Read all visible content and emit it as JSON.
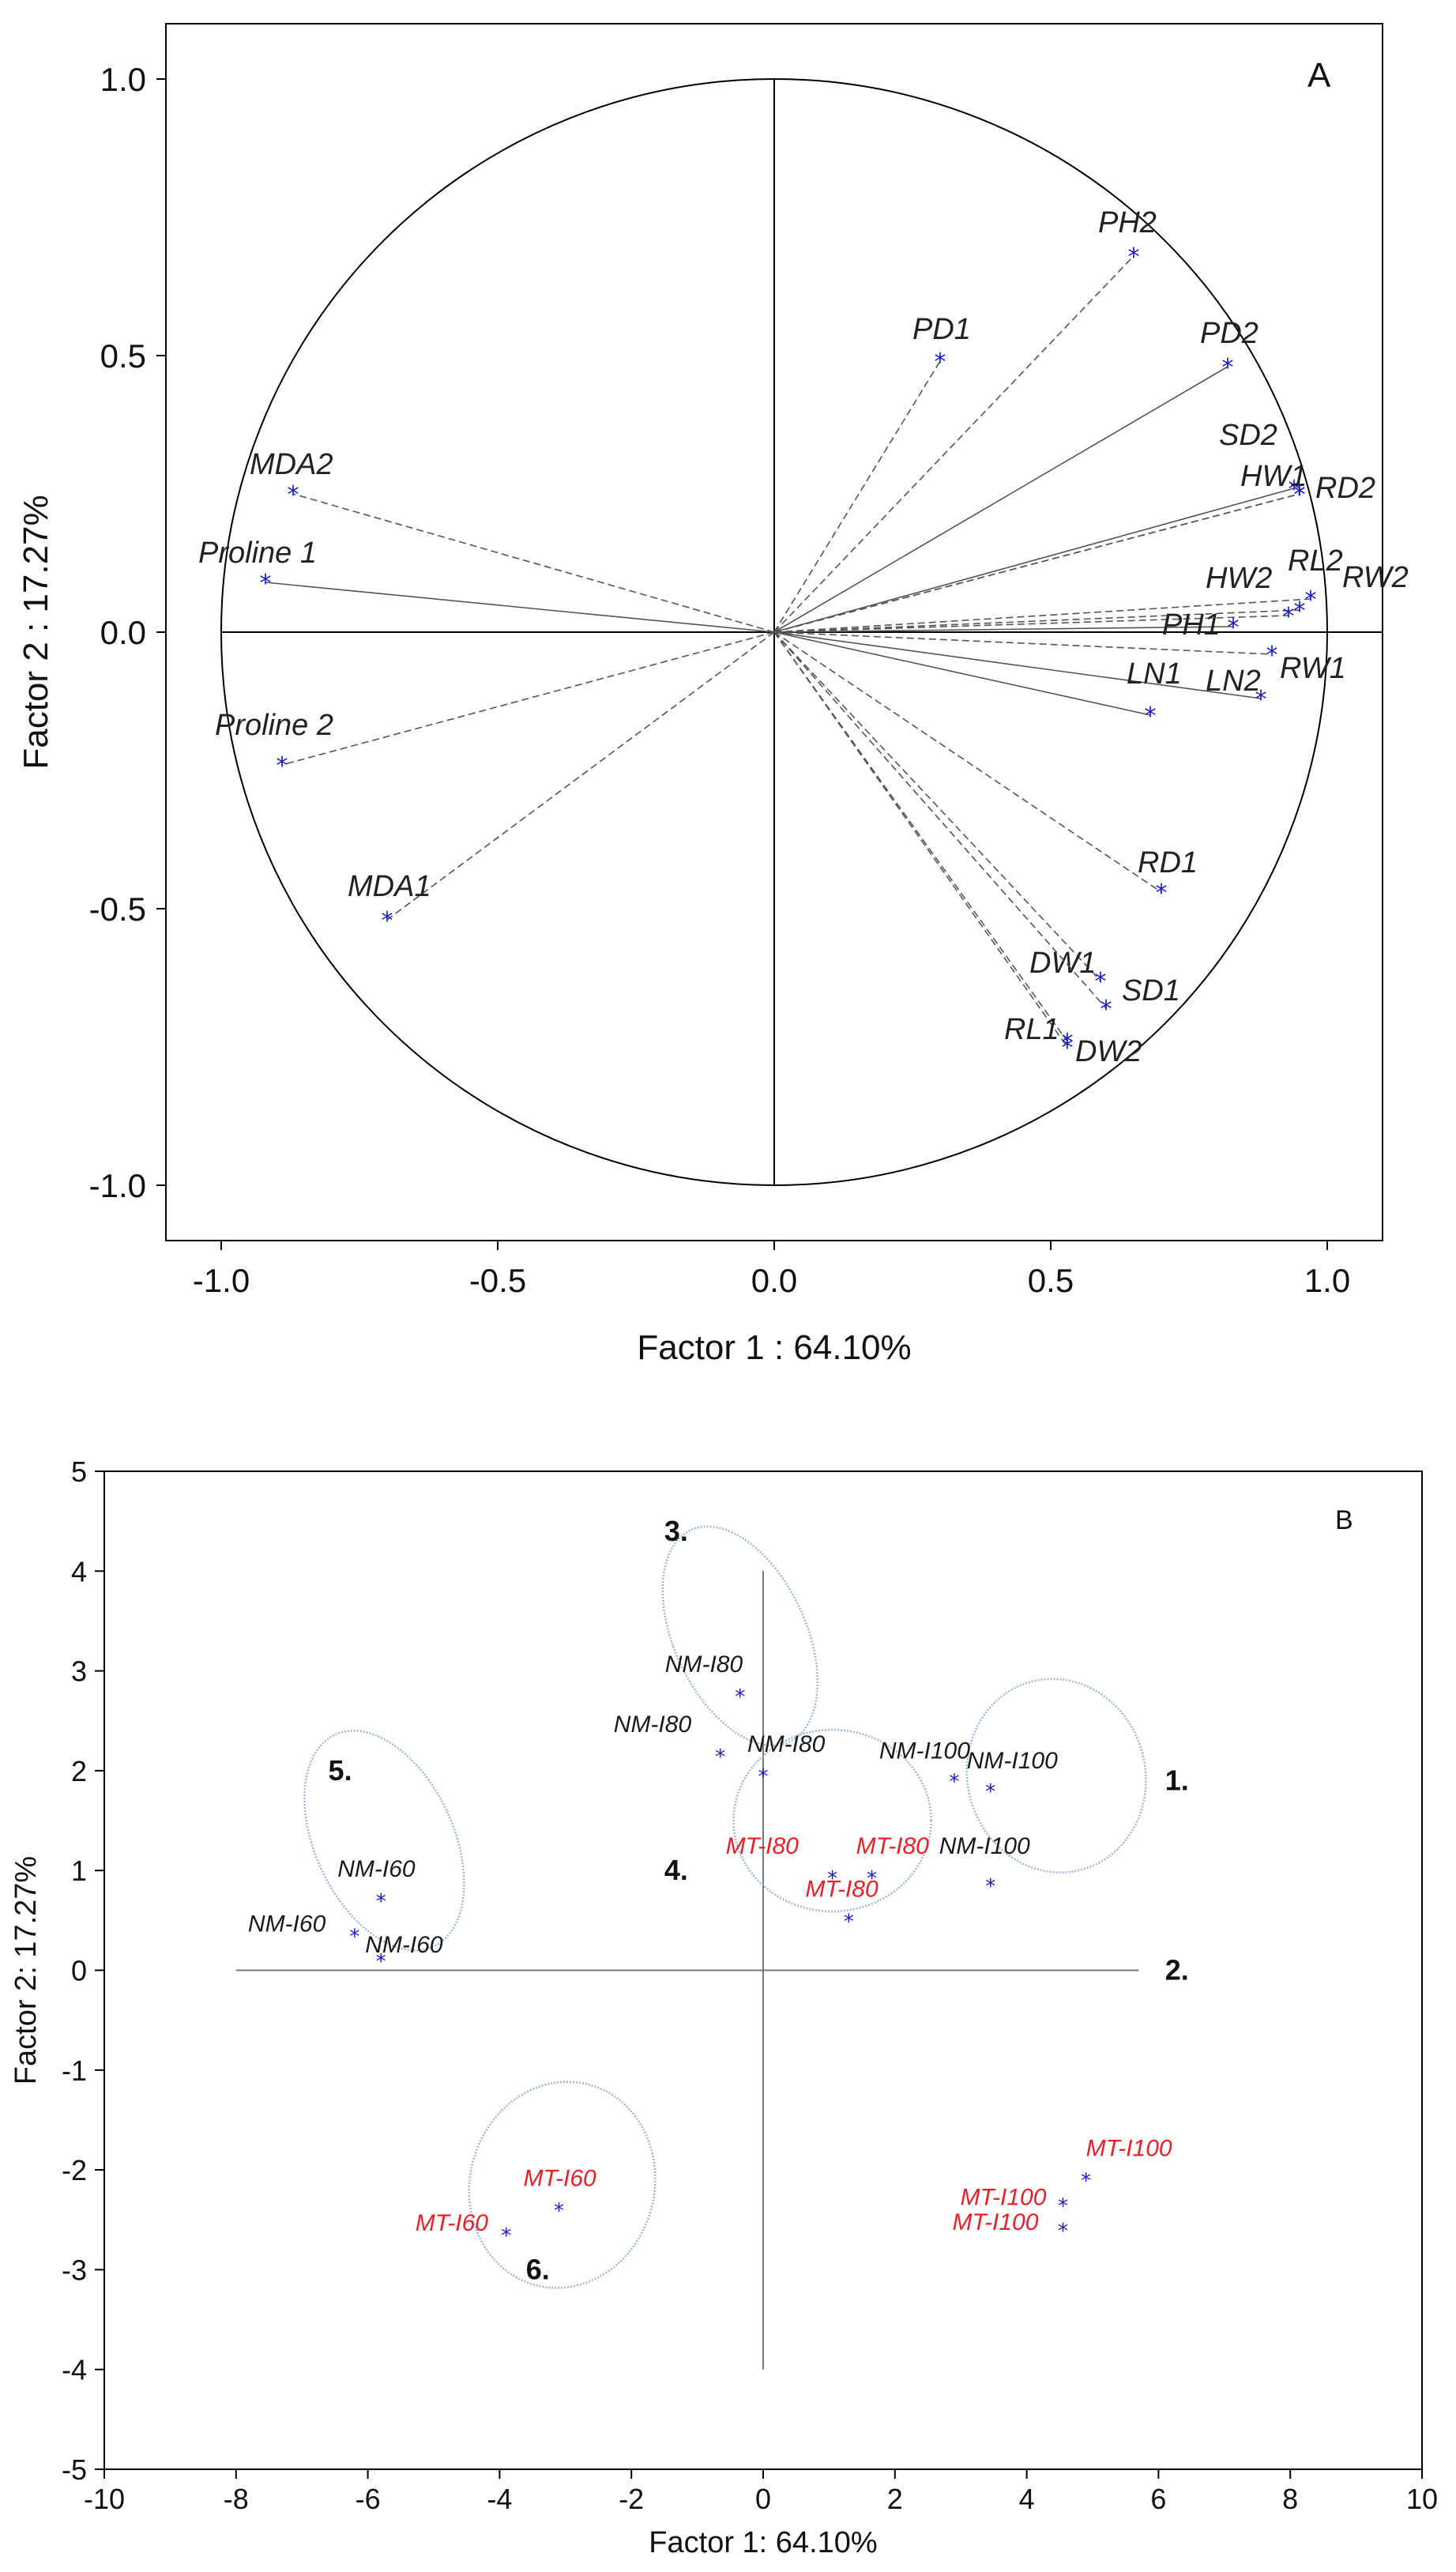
{
  "chart_data": [
    {
      "type": "scatter",
      "panel_label": "A",
      "xlabel": "Factor 1 : 64.10%",
      "ylabel": "Factor 2 : 17.27%",
      "xlim": [
        -1.1,
        1.1
      ],
      "ylim": [
        -1.1,
        1.1
      ],
      "xticks": [
        -1.0,
        -0.5,
        0.0,
        0.5,
        1.0
      ],
      "yticks": [
        -1.0,
        -0.5,
        0.0,
        0.5,
        1.0
      ],
      "xtick_labels": [
        "-1.0",
        "-0.5",
        "0.0",
        "0.5",
        "1.0"
      ],
      "ytick_labels": [
        "-1.0",
        "-0.5",
        "0.0",
        "0.5",
        "1.0"
      ],
      "unit_circle": true,
      "points": [
        {
          "name": "PH2",
          "x": 0.65,
          "y": 0.68,
          "style": "dashed"
        },
        {
          "name": "PD1",
          "x": 0.3,
          "y": 0.49,
          "style": "dashed"
        },
        {
          "name": "PD2",
          "x": 0.82,
          "y": 0.48,
          "style": "solid"
        },
        {
          "name": "SD2",
          "x": 0.94,
          "y": 0.26,
          "style": "solid"
        },
        {
          "name": "HW1",
          "x": 0.95,
          "y": 0.25,
          "style": "dashed"
        },
        {
          "name": "RD2",
          "x": 0.95,
          "y": 0.25,
          "style": "dashed"
        },
        {
          "name": "RL2",
          "x": 0.95,
          "y": 0.04,
          "style": "dashed"
        },
        {
          "name": "RW2",
          "x": 0.97,
          "y": 0.06,
          "style": "dashed"
        },
        {
          "name": "HW2",
          "x": 0.93,
          "y": 0.03,
          "style": "dashed"
        },
        {
          "name": "PH1",
          "x": 0.83,
          "y": 0.01,
          "style": "solid"
        },
        {
          "name": "RW1",
          "x": 0.9,
          "y": -0.04,
          "style": "dashed"
        },
        {
          "name": "LN2",
          "x": 0.88,
          "y": -0.12,
          "style": "solid"
        },
        {
          "name": "LN1",
          "x": 0.68,
          "y": -0.15,
          "style": "solid"
        },
        {
          "name": "RD1",
          "x": 0.7,
          "y": -0.47,
          "style": "dashed"
        },
        {
          "name": "DW1",
          "x": 0.59,
          "y": -0.63,
          "style": "dashed"
        },
        {
          "name": "SD1",
          "x": 0.6,
          "y": -0.68,
          "style": "dashed"
        },
        {
          "name": "DW2",
          "x": 0.53,
          "y": -0.74,
          "style": "dashed"
        },
        {
          "name": "RL1",
          "x": 0.53,
          "y": -0.75,
          "style": "dashed"
        },
        {
          "name": "MDA2",
          "x": -0.87,
          "y": 0.25,
          "style": "dashed"
        },
        {
          "name": "Proline 1",
          "x": -0.92,
          "y": 0.09,
          "style": "solid"
        },
        {
          "name": "Proline 2",
          "x": -0.89,
          "y": -0.24,
          "style": "dashed"
        },
        {
          "name": "MDA1",
          "x": -0.7,
          "y": -0.52,
          "style": "dashed"
        }
      ]
    },
    {
      "type": "scatter",
      "panel_label": "B",
      "xlabel": "Factor 1: 64.10%",
      "ylabel": "Factor 2: 17.27%",
      "xlim": [
        -10,
        10
      ],
      "ylim": [
        -5,
        5
      ],
      "xticks": [
        -10,
        -8,
        -6,
        -4,
        -2,
        0,
        2,
        4,
        6,
        8,
        10
      ],
      "yticks": [
        -5,
        -4,
        -3,
        -2,
        -1,
        0,
        1,
        2,
        3,
        4,
        5
      ],
      "xtick_labels": [
        "-10",
        "-8",
        "-6",
        "-4",
        "-2",
        "0",
        "2",
        "4",
        "6",
        "8",
        "10"
      ],
      "ytick_labels": [
        "-5",
        "-4",
        "-3",
        "-2",
        "-1",
        "0",
        "1",
        "2",
        "3",
        "4",
        "5"
      ],
      "points": [
        {
          "label": "NM-I80",
          "x": -0.35,
          "y": 2.75,
          "color": "black"
        },
        {
          "label": "NM-I80",
          "x": -0.65,
          "y": 2.15,
          "color": "black"
        },
        {
          "label": "NM-I80",
          "x": 0.0,
          "y": 1.95,
          "color": "black"
        },
        {
          "label": "NM-I100",
          "x": 2.9,
          "y": 1.9,
          "color": "black"
        },
        {
          "label": "NM-I100",
          "x": 3.45,
          "y": 1.8,
          "color": "black"
        },
        {
          "label": "NM-I100",
          "x": 3.45,
          "y": 0.85,
          "color": "black"
        },
        {
          "label": "MT-I80",
          "x": 1.05,
          "y": 0.93,
          "color": "red"
        },
        {
          "label": "MT-I80",
          "x": 1.65,
          "y": 0.93,
          "color": "red"
        },
        {
          "label": "MT-I80",
          "x": 1.3,
          "y": 0.5,
          "color": "red"
        },
        {
          "label": "NM-I60",
          "x": -5.8,
          "y": 0.7,
          "color": "black"
        },
        {
          "label": "NM-I60",
          "x": -6.2,
          "y": 0.35,
          "color": "black"
        },
        {
          "label": "NM-I60",
          "x": -5.8,
          "y": 0.1,
          "color": "black"
        },
        {
          "label": "MT-I60",
          "x": -3.1,
          "y": -2.4,
          "color": "red"
        },
        {
          "label": "MT-I60",
          "x": -3.9,
          "y": -2.65,
          "color": "red"
        },
        {
          "label": "MT-I100",
          "x": 4.9,
          "y": -2.1,
          "color": "red"
        },
        {
          "label": "MT-I100",
          "x": 4.55,
          "y": -2.35,
          "color": "red"
        },
        {
          "label": "MT-I100",
          "x": 4.55,
          "y": -2.6,
          "color": "red"
        }
      ],
      "groups": [
        {
          "label": "1.",
          "ellipse": {
            "cx": 4.45,
            "cy": 1.95,
            "rx": 1.35,
            "ry": 0.75,
            "angle": -15
          }
        },
        {
          "label": "2.",
          "ellipse": null
        },
        {
          "label": "3.",
          "ellipse": {
            "cx": -0.35,
            "cy": 3.35,
            "rx": 1.0,
            "ry": 0.9,
            "angle": -25
          }
        },
        {
          "label": "4.",
          "ellipse": {
            "cx": 1.05,
            "cy": 1.5,
            "rx": 1.5,
            "ry": 0.7,
            "angle": 0
          }
        },
        {
          "label": "5.",
          "ellipse": {
            "cx": -5.75,
            "cy": 1.3,
            "rx": 1.05,
            "ry": 0.9,
            "angle": -25
          }
        },
        {
          "label": "6.",
          "ellipse": {
            "cx": -3.05,
            "cy": -2.15,
            "rx": 1.4,
            "ry": 0.8,
            "angle": 15
          }
        }
      ]
    }
  ]
}
